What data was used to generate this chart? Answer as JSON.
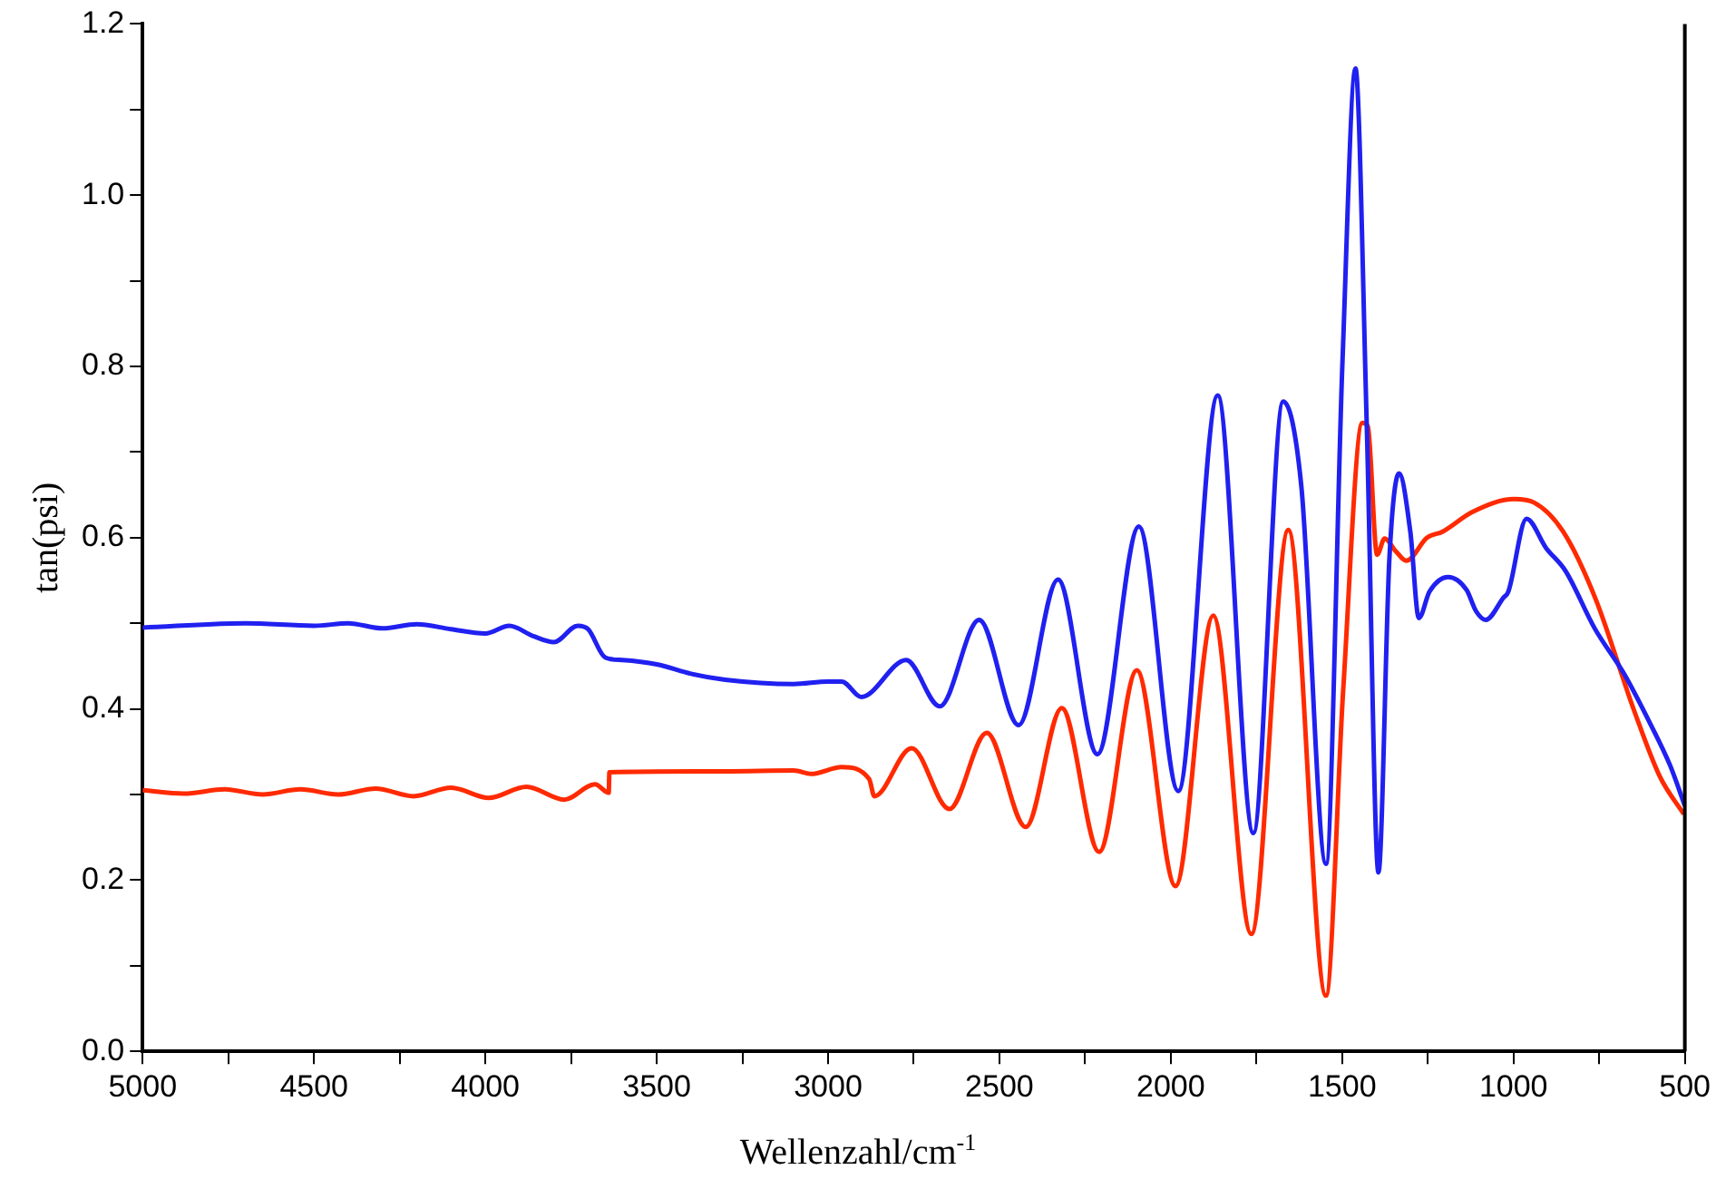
{
  "chart_data": {
    "type": "line",
    "xlabel": "Wellenzahl/cm$^{-1}$",
    "ylabel": "tan(psi)",
    "xlim": [
      5000,
      500
    ],
    "xticks": [
      5000,
      {
        "value": 4750,
        "label": null
      },
      4500,
      {
        "value": 4250,
        "label": null
      },
      4000,
      {
        "value": 3750,
        "label": null
      },
      3500,
      {
        "value": 3250,
        "label": null
      },
      3000,
      {
        "value": 2750,
        "label": null
      },
      2500,
      {
        "value": 2250,
        "label": null
      },
      2000,
      {
        "value": 1750,
        "label": null
      },
      1500,
      {
        "value": 1250,
        "label": null
      },
      1000,
      {
        "value": 750,
        "label": null
      },
      500
    ],
    "ylim": [
      0,
      1.2
    ],
    "yticks": [
      {
        "value": 0,
        "label": "0.0"
      },
      {
        "value": 0.1,
        "label": null
      },
      {
        "value": 0.2,
        "label": "0.2"
      },
      {
        "value": 0.3,
        "label": null
      },
      {
        "value": 0.4,
        "label": "0.4"
      },
      {
        "value": 0.5,
        "label": null
      },
      {
        "value": 0.6,
        "label": "0.6"
      },
      {
        "value": 0.7,
        "label": null
      },
      {
        "value": 0.8,
        "label": "0.8"
      },
      {
        "value": 0.9,
        "label": null
      },
      {
        "value": 1.0,
        "label": "1.0"
      },
      {
        "value": 1.1,
        "label": null
      },
      {
        "value": 1.2,
        "label": "1.2"
      }
    ],
    "grid": false,
    "legend": false,
    "marker": "none",
    "line_style": "solid",
    "series": [
      {
        "color": "#2020f0",
        "x": [
          5000,
          4700,
          4500,
          4400,
          4300,
          4200,
          4100,
          4000,
          3930,
          3860,
          3800,
          3730,
          3700,
          3650,
          3600,
          3500,
          3400,
          3300,
          3100,
          3000,
          2960,
          2903,
          2772,
          2674,
          2559,
          2444,
          2329,
          2214,
          2093,
          1978,
          1863,
          1759,
          1672,
          1619,
          1547,
          1499,
          1461,
          1428,
          1394,
          1362,
          1334,
          1301,
          1276,
          1245,
          1191,
          1137,
          1109,
          1081,
          1029,
          1015,
          962,
          905,
          848,
          763,
          676,
          600,
          543,
          500
        ],
        "values": [
          0.495,
          0.5,
          0.497,
          0.5,
          0.494,
          0.499,
          0.493,
          0.488,
          0.497,
          0.485,
          0.478,
          0.497,
          0.493,
          0.46,
          0.457,
          0.452,
          0.441,
          0.434,
          0.429,
          0.432,
          0.432,
          0.414,
          0.457,
          0.403,
          0.504,
          0.381,
          0.551,
          0.347,
          0.613,
          0.304,
          0.766,
          0.255,
          0.759,
          0.66,
          0.219,
          0.805,
          1.148,
          0.73,
          0.209,
          0.576,
          0.675,
          0.607,
          0.506,
          0.537,
          0.554,
          0.539,
          0.514,
          0.504,
          0.53,
          0.537,
          0.622,
          0.588,
          0.561,
          0.494,
          0.44,
          0.382,
          0.334,
          0.287
        ]
      },
      {
        "color": "#ff2a00",
        "x": [
          5000,
          4880,
          4760,
          4650,
          4540,
          4430,
          4320,
          4210,
          4100,
          3990,
          3880,
          3770,
          3680,
          3640,
          3638,
          3300,
          3100,
          3050,
          2960,
          2880,
          2865,
          2756,
          2646,
          2537,
          2423,
          2318,
          2209,
          2099,
          1986,
          1876,
          1765,
          1657,
          1547,
          1497,
          1441,
          1425,
          1398,
          1376,
          1343,
          1313,
          1252,
          1207,
          1120,
          998,
          940,
          855,
          761,
          648,
          573,
          503
        ],
        "values": [
          0.305,
          0.301,
          0.306,
          0.3,
          0.306,
          0.3,
          0.307,
          0.298,
          0.308,
          0.296,
          0.309,
          0.294,
          0.312,
          0.302,
          0.326,
          0.327,
          0.328,
          0.324,
          0.332,
          0.318,
          0.298,
          0.354,
          0.283,
          0.372,
          0.262,
          0.401,
          0.233,
          0.445,
          0.193,
          0.509,
          0.137,
          0.609,
          0.065,
          0.421,
          0.734,
          0.73,
          0.58,
          0.599,
          0.584,
          0.573,
          0.6,
          0.607,
          0.63,
          0.645,
          0.641,
          0.607,
          0.529,
          0.398,
          0.321,
          0.277
        ]
      }
    ]
  }
}
